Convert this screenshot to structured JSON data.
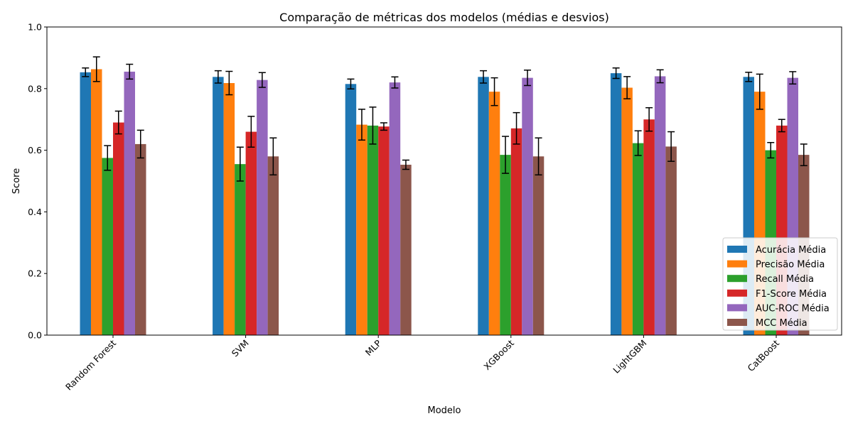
{
  "chart_data": {
    "type": "bar",
    "title": "Comparação de métricas dos modelos (médias e desvios)",
    "xlabel": "Modelo",
    "ylabel": "Score",
    "ylim": [
      0,
      1
    ],
    "yticks": [
      "0.0",
      "0.2",
      "0.4",
      "0.6",
      "0.8",
      "1.0"
    ],
    "categories": [
      "Random Forest",
      "SVM",
      "MLP",
      "XGBoost",
      "LightGBM",
      "CatBoost"
    ],
    "legend_position": "lower-right",
    "grid": false,
    "series": [
      {
        "name": "Acurácia Média",
        "color": "#1f77b4",
        "values": [
          0.853,
          0.838,
          0.815,
          0.838,
          0.85,
          0.838
        ],
        "errors": [
          0.014,
          0.02,
          0.016,
          0.02,
          0.017,
          0.015
        ]
      },
      {
        "name": "Precisão Média",
        "color": "#ff7f0e",
        "values": [
          0.863,
          0.818,
          0.683,
          0.79,
          0.803,
          0.79
        ],
        "errors": [
          0.04,
          0.038,
          0.05,
          0.045,
          0.036,
          0.057
        ]
      },
      {
        "name": "Recall Média",
        "color": "#2ca02c",
        "values": [
          0.575,
          0.555,
          0.68,
          0.585,
          0.623,
          0.6
        ],
        "errors": [
          0.04,
          0.055,
          0.06,
          0.06,
          0.04,
          0.025
        ]
      },
      {
        "name": "F1-Score Média",
        "color": "#d62728",
        "values": [
          0.69,
          0.66,
          0.677,
          0.671,
          0.7,
          0.68
        ],
        "errors": [
          0.037,
          0.05,
          0.012,
          0.051,
          0.038,
          0.02
        ]
      },
      {
        "name": "AUC-ROC Média",
        "color": "#9467bd",
        "values": [
          0.855,
          0.828,
          0.82,
          0.835,
          0.84,
          0.835
        ],
        "errors": [
          0.024,
          0.024,
          0.018,
          0.025,
          0.021,
          0.02
        ]
      },
      {
        "name": "MCC Média",
        "color": "#8c564b",
        "values": [
          0.62,
          0.58,
          0.553,
          0.58,
          0.612,
          0.585
        ],
        "errors": [
          0.045,
          0.06,
          0.015,
          0.06,
          0.048,
          0.035
        ]
      }
    ]
  }
}
